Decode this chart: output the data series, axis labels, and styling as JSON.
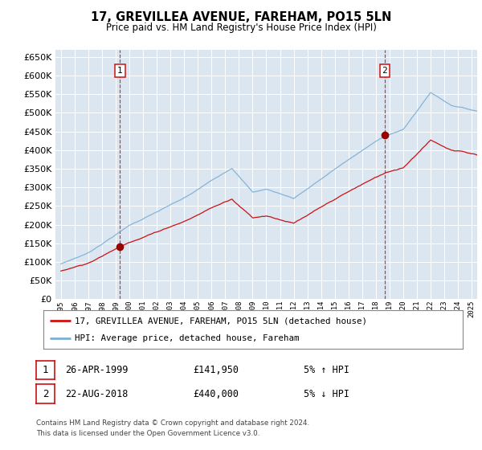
{
  "title": "17, GREVILLEA AVENUE, FAREHAM, PO15 5LN",
  "subtitle": "Price paid vs. HM Land Registry's House Price Index (HPI)",
  "legend_line1": "17, GREVILLEA AVENUE, FAREHAM, PO15 5LN (detached house)",
  "legend_line2": "HPI: Average price, detached house, Fareham",
  "annotation1": {
    "num": "1",
    "date": "26-APR-1999",
    "price": "£141,950",
    "pct": "5% ↑ HPI"
  },
  "annotation2": {
    "num": "2",
    "date": "22-AUG-2018",
    "price": "£440,000",
    "pct": "5% ↓ HPI"
  },
  "footer": "Contains HM Land Registry data © Crown copyright and database right 2024.\nThis data is licensed under the Open Government Licence v3.0.",
  "sale1_year": 1999.32,
  "sale1_price": 141950,
  "sale2_year": 2018.64,
  "sale2_price": 440000,
  "hpi_color": "#7bafd4",
  "price_color": "#cc1111",
  "marker_color": "#990000",
  "annotation_color": "#cc1111",
  "background_chart": "#dce6f1",
  "grid_color": "#ffffff",
  "ylim": [
    0,
    670000
  ],
  "xlim_start": 1994.6,
  "xlim_end": 2025.4
}
